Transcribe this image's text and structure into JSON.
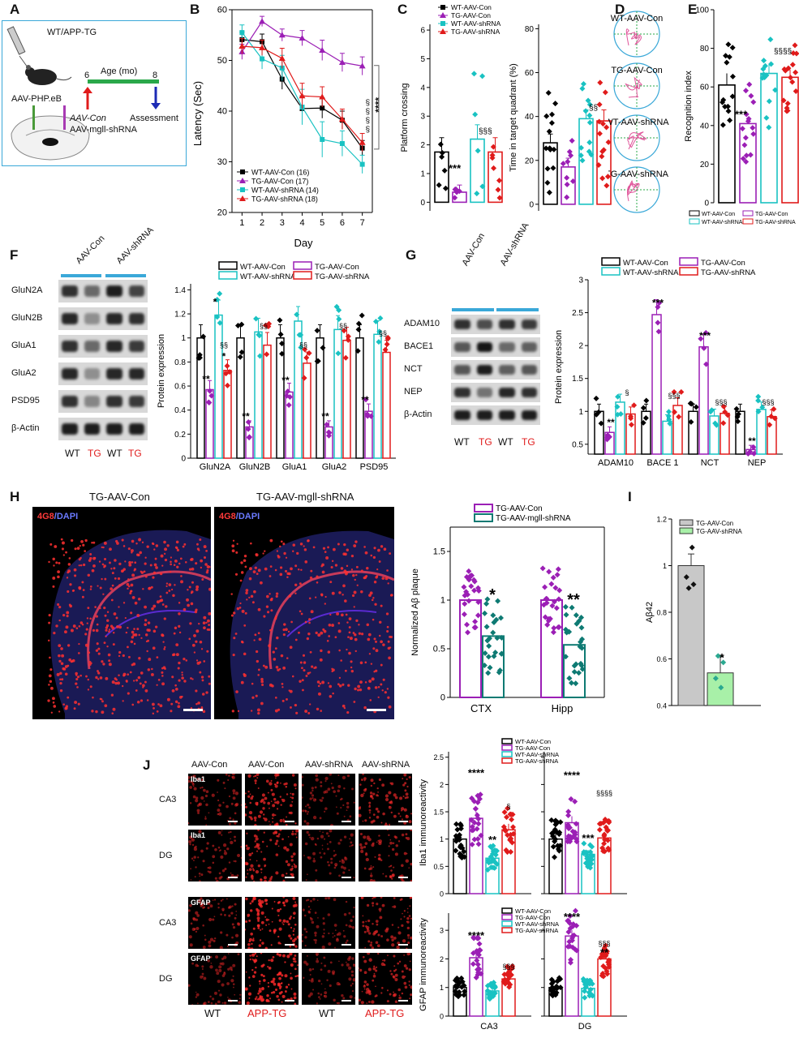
{
  "panel_letters": {
    "A": "A",
    "B": "B",
    "C": "C",
    "D": "D",
    "E": "E",
    "F": "F",
    "G": "G",
    "H": "H",
    "I": "I",
    "J": "J"
  },
  "colors": {
    "wt_con": "#000000",
    "tg_con": "#9b1fb5",
    "wt_sh": "#19c2c2",
    "tg_sh": "#e01b1b",
    "tg_sh_h": "#0e7a73",
    "frame_a": "#3aa8d8",
    "green_bar": "#2aa84a",
    "red_arrow": "#e01b1b",
    "blue_arrow": "#1c2bb5"
  },
  "panelA": {
    "mouse_label": "WT/APP-TG",
    "age_title": "Age (mo)",
    "age_start": "6",
    "age_end": "8",
    "vector": "AAV-PHP.eB",
    "aav_con": "AAV-Con",
    "aav_sh": "AAV-mgll-shRNA",
    "assessment": "Assessment"
  },
  "legend_groups": [
    "WT-AAV-Con",
    "TG-AAV-Con",
    "WT-AAV-shRNA",
    "TG-AAV-shRNA"
  ],
  "panelB": {
    "legend": [
      "WT-AAV-Con (16)",
      "TG-AAV-Con (17)",
      "WT-AAV-shRNA (14)",
      "TG-AAV-shRNA (18)"
    ],
    "sig1": "§§§§",
    "sig2": "****"
  },
  "panelC": {
    "sig_tg": "***",
    "sig_sh1": "§§§",
    "sig_sh2": "§§"
  },
  "panelD": {
    "labels": [
      "WT-AAV-Con",
      "TG-AAV-Con",
      "WT-AAV-shRNA",
      "TG-AAV-shRNA"
    ]
  },
  "panelE": {
    "sig_tg": "***",
    "sig_sh": "§§§§"
  },
  "panelF": {
    "groups_top": [
      "AAV-Con",
      "AAV-shRNA"
    ],
    "proteins": [
      "GluN2A",
      "GluN2B",
      "GluA1",
      "GluA2",
      "PSD95",
      "β-Actin"
    ],
    "lanes": [
      "WT",
      "TG",
      "WT",
      "TG"
    ]
  },
  "panelG": {
    "groups_top": [
      "AAV-Con",
      "AAV-shRNA"
    ],
    "proteins": [
      "ADAM10",
      "BACE1",
      "NCT",
      "NEP",
      "β-Actin"
    ],
    "lanes": [
      "WT",
      "TG",
      "WT",
      "TG"
    ]
  },
  "panelH": {
    "title_left": "TG-AAV-Con",
    "title_right": "TG-AAV-mgll-shRNA",
    "stain_a": "4G8",
    "stain_b": "/DAPI",
    "legend": [
      "TG-AAV-Con",
      "TG-AAV-mgll-shRNA"
    ],
    "sig_ctx": "*",
    "sig_hipp": "**"
  },
  "panelI": {
    "legend": [
      "TG-AAV-Con",
      "TG-AAV-shRNA"
    ],
    "sig": "*"
  },
  "panelJ": {
    "col_headers": [
      "AAV-Con",
      "AAV-Con",
      "AAV-shRNA",
      "AAV-shRNA"
    ],
    "row_labels": [
      "CA3",
      "DG",
      "CA3",
      "DG"
    ],
    "stains": [
      "Iba1",
      "Iba1",
      "GFAP",
      "GFAP"
    ],
    "bottom": [
      "WT",
      "APP-TG",
      "WT",
      "APP-TG"
    ],
    "sig_iba_ca3": [
      "****",
      "**",
      "§"
    ],
    "sig_iba_dg": [
      "****",
      "***",
      "§§§§"
    ],
    "sig_gfap_ca3": [
      "****",
      "§§§"
    ],
    "sig_gfap_dg": [
      "****",
      "§§§",
      "**"
    ]
  },
  "chart_data": [
    {
      "panel": "B",
      "type": "line",
      "xlabel": "Day",
      "ylabel": "Latency (Sec)",
      "x": [
        1,
        2,
        3,
        4,
        5,
        6,
        7
      ],
      "xlim": [
        0.5,
        7.5
      ],
      "ylim": [
        20,
        60
      ],
      "yticks": [
        20,
        30,
        40,
        50,
        60
      ],
      "series": [
        {
          "name": "WT-AAV-Con (16)",
          "values": [
            54.1,
            53.7,
            46.3,
            40.5,
            40.6,
            38.2,
            32.7
          ],
          "err": [
            1.5,
            1.5,
            2.0,
            2.5,
            2.0,
            1.8,
            1.5
          ]
        },
        {
          "name": "TG-AAV-Con (17)",
          "values": [
            51.7,
            57.7,
            55.0,
            54.4,
            52.0,
            49.6,
            48.9
          ],
          "err": [
            1.5,
            1.0,
            1.2,
            1.5,
            2.0,
            1.8,
            1.8
          ]
        },
        {
          "name": "WT-AAV-shRNA (14)",
          "values": [
            55.5,
            50.3,
            48.5,
            40.8,
            34.4,
            33.6,
            29.5
          ],
          "err": [
            1.5,
            2.0,
            2.5,
            3.5,
            3.5,
            2.5,
            1.8
          ]
        },
        {
          "name": "TG-AAV-shRNA (18)",
          "values": [
            52.8,
            52.5,
            50.4,
            43.0,
            42.8,
            38.4,
            33.8
          ],
          "err": [
            1.5,
            1.5,
            2.0,
            2.5,
            2.0,
            2.0,
            1.8
          ]
        }
      ]
    },
    {
      "panel": "C-left",
      "type": "bar",
      "ylabel": "Platform crossing",
      "ylim": [
        -0.3,
        6.2
      ],
      "yticks": [
        0,
        1,
        2,
        3,
        4,
        5,
        6
      ],
      "series": [
        {
          "name": "WT-AAV-Con",
          "value": 1.75,
          "err": 0.5
        },
        {
          "name": "TG-AAV-Con",
          "value": 0.35,
          "err": 0.25
        },
        {
          "name": "WT-AAV-shRNA",
          "value": 2.2,
          "err": 0.5
        },
        {
          "name": "TG-AAV-shRNA",
          "value": 1.75,
          "err": 0.5
        }
      ]
    },
    {
      "panel": "C-right",
      "type": "bar",
      "ylabel": "Time in target quadrant (%)",
      "ylim": [
        -3,
        82
      ],
      "yticks": [
        0,
        20,
        40,
        60,
        80
      ],
      "series": [
        {
          "name": "WT-AAV-Con",
          "value": 28,
          "err": 4
        },
        {
          "name": "TG-AAV-Con",
          "value": 17,
          "err": 4
        },
        {
          "name": "WT-AAV-shRNA",
          "value": 39,
          "err": 4
        },
        {
          "name": "TG-AAV-shRNA",
          "value": 38,
          "err": 5
        }
      ]
    },
    {
      "panel": "E",
      "type": "bar",
      "ylabel": "Recognition index",
      "ylim": [
        0,
        100
      ],
      "yticks": [
        0,
        20,
        40,
        60,
        80,
        100
      ],
      "series": [
        {
          "name": "WT-AAV-Con",
          "value": 61,
          "err": 6
        },
        {
          "name": "TG-AAV-Con",
          "value": 41,
          "err": 3
        },
        {
          "name": "WT-AAV-shRNA",
          "value": 67,
          "err": 5
        },
        {
          "name": "TG-AAV-shRNA",
          "value": 65,
          "err": 4
        }
      ]
    },
    {
      "panel": "F",
      "type": "bar",
      "ylabel": "Protein expression",
      "ylim": [
        0,
        1.45
      ],
      "yticks": [
        0,
        0.2,
        0.4,
        0.6,
        0.8,
        1.0,
        1.2,
        1.4
      ],
      "categories": [
        "GluN2A",
        "GluN2B",
        "GluA1",
        "GluA2",
        "PSD95"
      ],
      "series": [
        {
          "name": "WT-AAV-Con",
          "values": [
            1.0,
            1.0,
            1.0,
            1.0,
            1.0
          ]
        },
        {
          "name": "TG-AAV-Con",
          "values": [
            0.57,
            0.26,
            0.55,
            0.26,
            0.39
          ]
        },
        {
          "name": "WT-AAV-shRNA",
          "values": [
            1.19,
            1.05,
            1.14,
            1.07,
            1.03
          ]
        },
        {
          "name": "TG-AAV-shRNA",
          "values": [
            0.73,
            0.94,
            0.79,
            0.98,
            0.88
          ]
        }
      ]
    },
    {
      "panel": "G",
      "type": "bar",
      "ylabel": "Protein expression",
      "ylim": [
        0.35,
        3.0
      ],
      "yticks": [
        0.5,
        1.0,
        1.5,
        2.0,
        2.5,
        3.0
      ],
      "categories": [
        "ADAM10",
        "BACE 1",
        "NCT",
        "NEP"
      ],
      "series": [
        {
          "name": "WT-AAV-Con",
          "values": [
            1.0,
            1.0,
            1.0,
            1.0
          ]
        },
        {
          "name": "TG-AAV-Con",
          "values": [
            0.68,
            2.47,
            1.98,
            0.42
          ]
        },
        {
          "name": "WT-AAV-shRNA",
          "values": [
            1.14,
            0.85,
            0.93,
            1.03
          ]
        },
        {
          "name": "TG-AAV-shRNA",
          "values": [
            0.96,
            1.09,
            0.97,
            0.92
          ]
        }
      ]
    },
    {
      "panel": "H",
      "type": "bar",
      "ylabel": "Normalized Aβ plaque",
      "ylim": [
        0,
        1.75
      ],
      "yticks": [
        0,
        0.5,
        1.0,
        1.5
      ],
      "categories": [
        "CTX",
        "Hipp"
      ],
      "series": [
        {
          "name": "TG-AAV-Con",
          "values": [
            1.0,
            1.0
          ]
        },
        {
          "name": "TG-AAV-mgll-shRNA",
          "values": [
            0.63,
            0.54
          ]
        }
      ]
    },
    {
      "panel": "I",
      "type": "bar",
      "ylabel": "Aβ42",
      "ylim": [
        0.4,
        1.2
      ],
      "yticks": [
        0.4,
        0.6,
        0.8,
        1.0,
        1.2
      ],
      "series": [
        {
          "name": "TG-AAV-Con",
          "value": 1.0,
          "err": 0.05
        },
        {
          "name": "TG-AAV-shRNA",
          "value": 0.54,
          "err": 0.07
        }
      ]
    },
    {
      "panel": "J-Iba1",
      "type": "bar",
      "ylabel": "Iba1 immunoreactivity",
      "ylim": [
        0,
        2.6
      ],
      "yticks": [
        0,
        0.5,
        1.0,
        1.5,
        2.0,
        2.5
      ],
      "categories": [
        "CA3",
        "DG"
      ],
      "series": [
        {
          "name": "WT-AAV-Con",
          "values": [
            1.0,
            1.0
          ]
        },
        {
          "name": "TG-AAV-Con",
          "values": [
            1.38,
            1.3
          ]
        },
        {
          "name": "WT-AAV-shRNA",
          "values": [
            0.65,
            0.72
          ]
        },
        {
          "name": "TG-AAV-shRNA",
          "values": [
            1.17,
            1.02
          ]
        }
      ]
    },
    {
      "panel": "J-GFAP",
      "type": "bar",
      "ylabel": "GFAP immunoreactivity",
      "ylim": [
        0,
        3.6
      ],
      "yticks": [
        0,
        1,
        2,
        3
      ],
      "categories": [
        "CA3",
        "DG"
      ],
      "series": [
        {
          "name": "WT-AAV-Con",
          "values": [
            1.0,
            1.0
          ]
        },
        {
          "name": "TG-AAV-Con",
          "values": [
            2.04,
            2.8
          ]
        },
        {
          "name": "WT-AAV-shRNA",
          "values": [
            0.88,
            0.97
          ]
        },
        {
          "name": "TG-AAV-shRNA",
          "values": [
            1.3,
            2.0
          ]
        }
      ]
    }
  ]
}
